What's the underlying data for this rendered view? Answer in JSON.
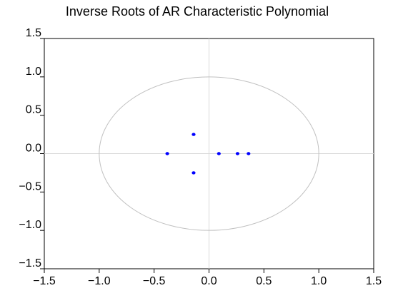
{
  "chart_data": {
    "type": "scatter",
    "title": "Inverse Roots of AR Characteristic Polynomial",
    "xlabel": "",
    "ylabel": "",
    "xlim": [
      -1.5,
      1.5
    ],
    "ylim": [
      -1.5,
      1.5
    ],
    "x_ticks": [
      "-1.5",
      "-1.0",
      "-0.5",
      "0.0",
      "0.5",
      "1.0",
      "1.5"
    ],
    "y_ticks": [
      "1.5",
      "1.0",
      "0.5",
      "0.0",
      "-0.5",
      "-1.0",
      "-1.5"
    ],
    "unit_circle": true,
    "zero_lines": true,
    "points": [
      {
        "x": -0.38,
        "y": 0.0
      },
      {
        "x": -0.14,
        "y": 0.25
      },
      {
        "x": -0.14,
        "y": -0.25
      },
      {
        "x": 0.09,
        "y": 0.0
      },
      {
        "x": 0.26,
        "y": 0.0
      },
      {
        "x": 0.36,
        "y": 0.0
      }
    ],
    "colors": {
      "points": "#0000ff",
      "circle": "#c0c0c0",
      "zero_lines": "#d8d8d8",
      "frame": "#000000"
    }
  }
}
